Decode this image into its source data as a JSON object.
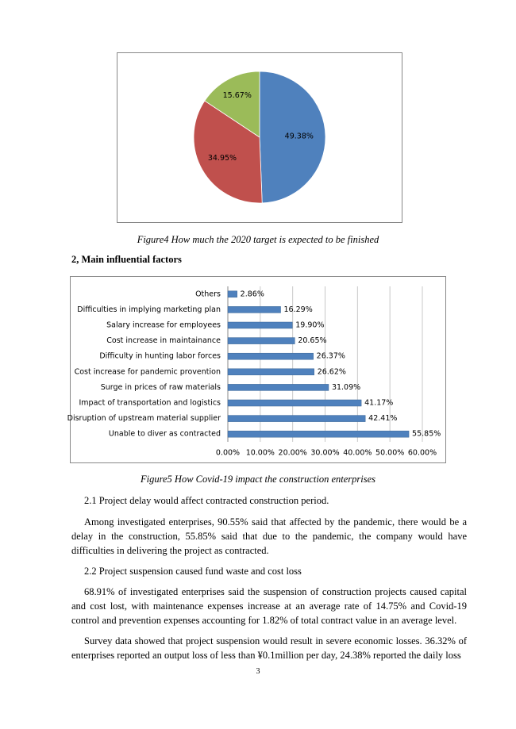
{
  "chart_data": [
    {
      "type": "pie",
      "categories": [
        null,
        null,
        null
      ],
      "values": [
        49.38,
        34.95,
        15.67
      ],
      "value_labels": [
        "49.38%",
        "34.95%",
        "15.67%"
      ],
      "colors": [
        "#4f81bd",
        "#c0504d",
        "#9bbb59"
      ]
    },
    {
      "type": "hbar",
      "categories": [
        "Others",
        "Difficulties in implying marketing plan",
        "Salary increase for employees",
        "Cost increase in maintainance",
        "Difficulty in hunting labor forces",
        "Cost increase for pandemic provention",
        "Surge in prices of raw materials",
        "Impact of transportation and logistics",
        "Disruption of upstream material supplier",
        "Unable to diver as contracted"
      ],
      "values": [
        2.86,
        16.29,
        19.9,
        20.65,
        26.37,
        26.62,
        31.09,
        41.17,
        42.41,
        55.85
      ],
      "value_labels": [
        "2.86%",
        "16.29%",
        "19.90%",
        "20.65%",
        "26.37%",
        "26.62%",
        "31.09%",
        "41.17%",
        "42.41%",
        "55.85%"
      ],
      "color": "#4f81bd",
      "xlim": [
        0,
        60
      ],
      "xticks": [
        {
          "value": 0,
          "label": "0.00%"
        },
        {
          "value": 10,
          "label": "10.00%"
        },
        {
          "value": 20,
          "label": "20.00%"
        },
        {
          "value": 30,
          "label": "30.00%"
        },
        {
          "value": 40,
          "label": "40.00%"
        },
        {
          "value": 50,
          "label": "50.00%"
        },
        {
          "value": 60,
          "label": "60.00%"
        }
      ],
      "grid": true
    }
  ],
  "document": {
    "figure4_caption": "Figure4 How much the 2020 target is expected to be finished",
    "heading": "2, Main influential factors",
    "figure5_caption": "Figure5 How Covid-19 impact the construction enterprises",
    "paragraphs": [
      "2.1 Project delay would affect contracted construction period.",
      "Among investigated enterprises, 90.55% said that affected by the pandemic, there would be a delay in the construction, 55.85% said that due to the pandemic, the company would have difficulties in delivering the project as contracted.",
      "2.2 Project suspension caused fund waste and cost loss",
      "68.91% of investigated enterprises said the suspension of construction projects caused capital and cost lost, with maintenance expenses increase at an average rate of 14.75% and Covid-19 control and prevention expenses accounting for 1.82% of total contract value in an average level.",
      "Survey data showed that project suspension would result in severe economic losses. 36.32% of enterprises reported an output loss of less than ¥0.1million per day, 24.38% reported the daily loss"
    ],
    "page_number": "3"
  }
}
